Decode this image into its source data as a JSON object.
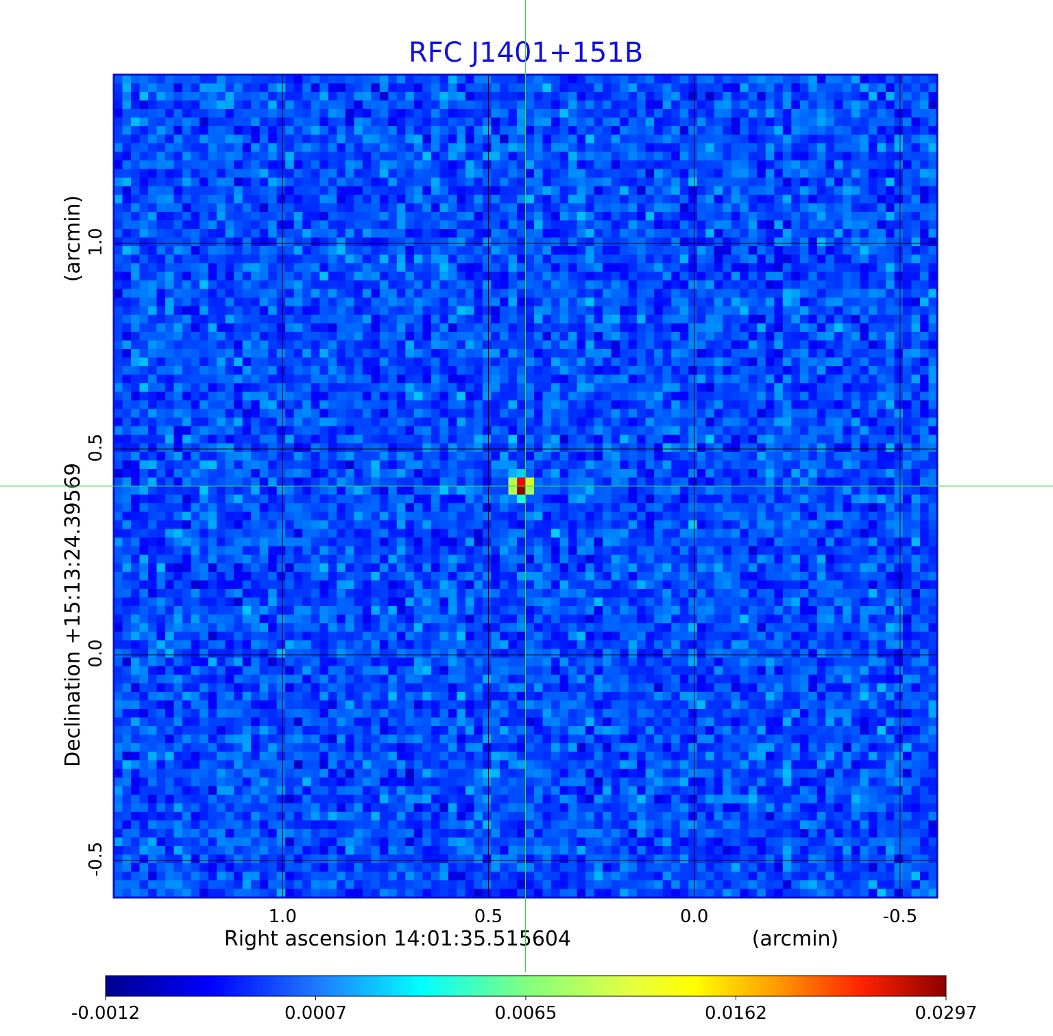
{
  "chart_data": {
    "type": "heatmap",
    "title": "RFC J1401+151B",
    "xlabel": "Right ascension  14:01:35.515604",
    "xunit": "(arcmin)",
    "ylabel": "Declination  +15:13:24.39569",
    "yunit": "(arcmin)",
    "x_reversed": true,
    "xlim": [
      1.41,
      -0.59
    ],
    "ylim": [
      -0.59,
      1.41
    ],
    "xticks": [
      1.0,
      0.5,
      0.0,
      -0.5
    ],
    "xtick_labels": [
      "1.0",
      "0.5",
      "0.0",
      "-0.5"
    ],
    "yticks": [
      -0.5,
      0.0,
      0.5,
      1.0
    ],
    "ytick_labels": [
      "-0.5",
      "0.0",
      "0.5",
      "1.0"
    ],
    "grid": true,
    "crosshair": {
      "x": 0.41,
      "y": 0.41
    },
    "source_peak": {
      "x": 0.42,
      "y": 0.41,
      "value": 0.0297
    },
    "pixels_per_side": 96,
    "background_level": 0.0,
    "colormap": "jet",
    "colorbar": {
      "placement": "bottom",
      "tick_labels": [
        "-0.0012",
        "0.0007",
        "0.0065",
        "0.0162",
        "0.0297"
      ],
      "min": -0.0012,
      "max": 0.0297
    },
    "colors": {
      "title": "#1010e0",
      "grid": "#000000",
      "crosshair": "#33dd33",
      "frame": "#0a14c8"
    }
  }
}
